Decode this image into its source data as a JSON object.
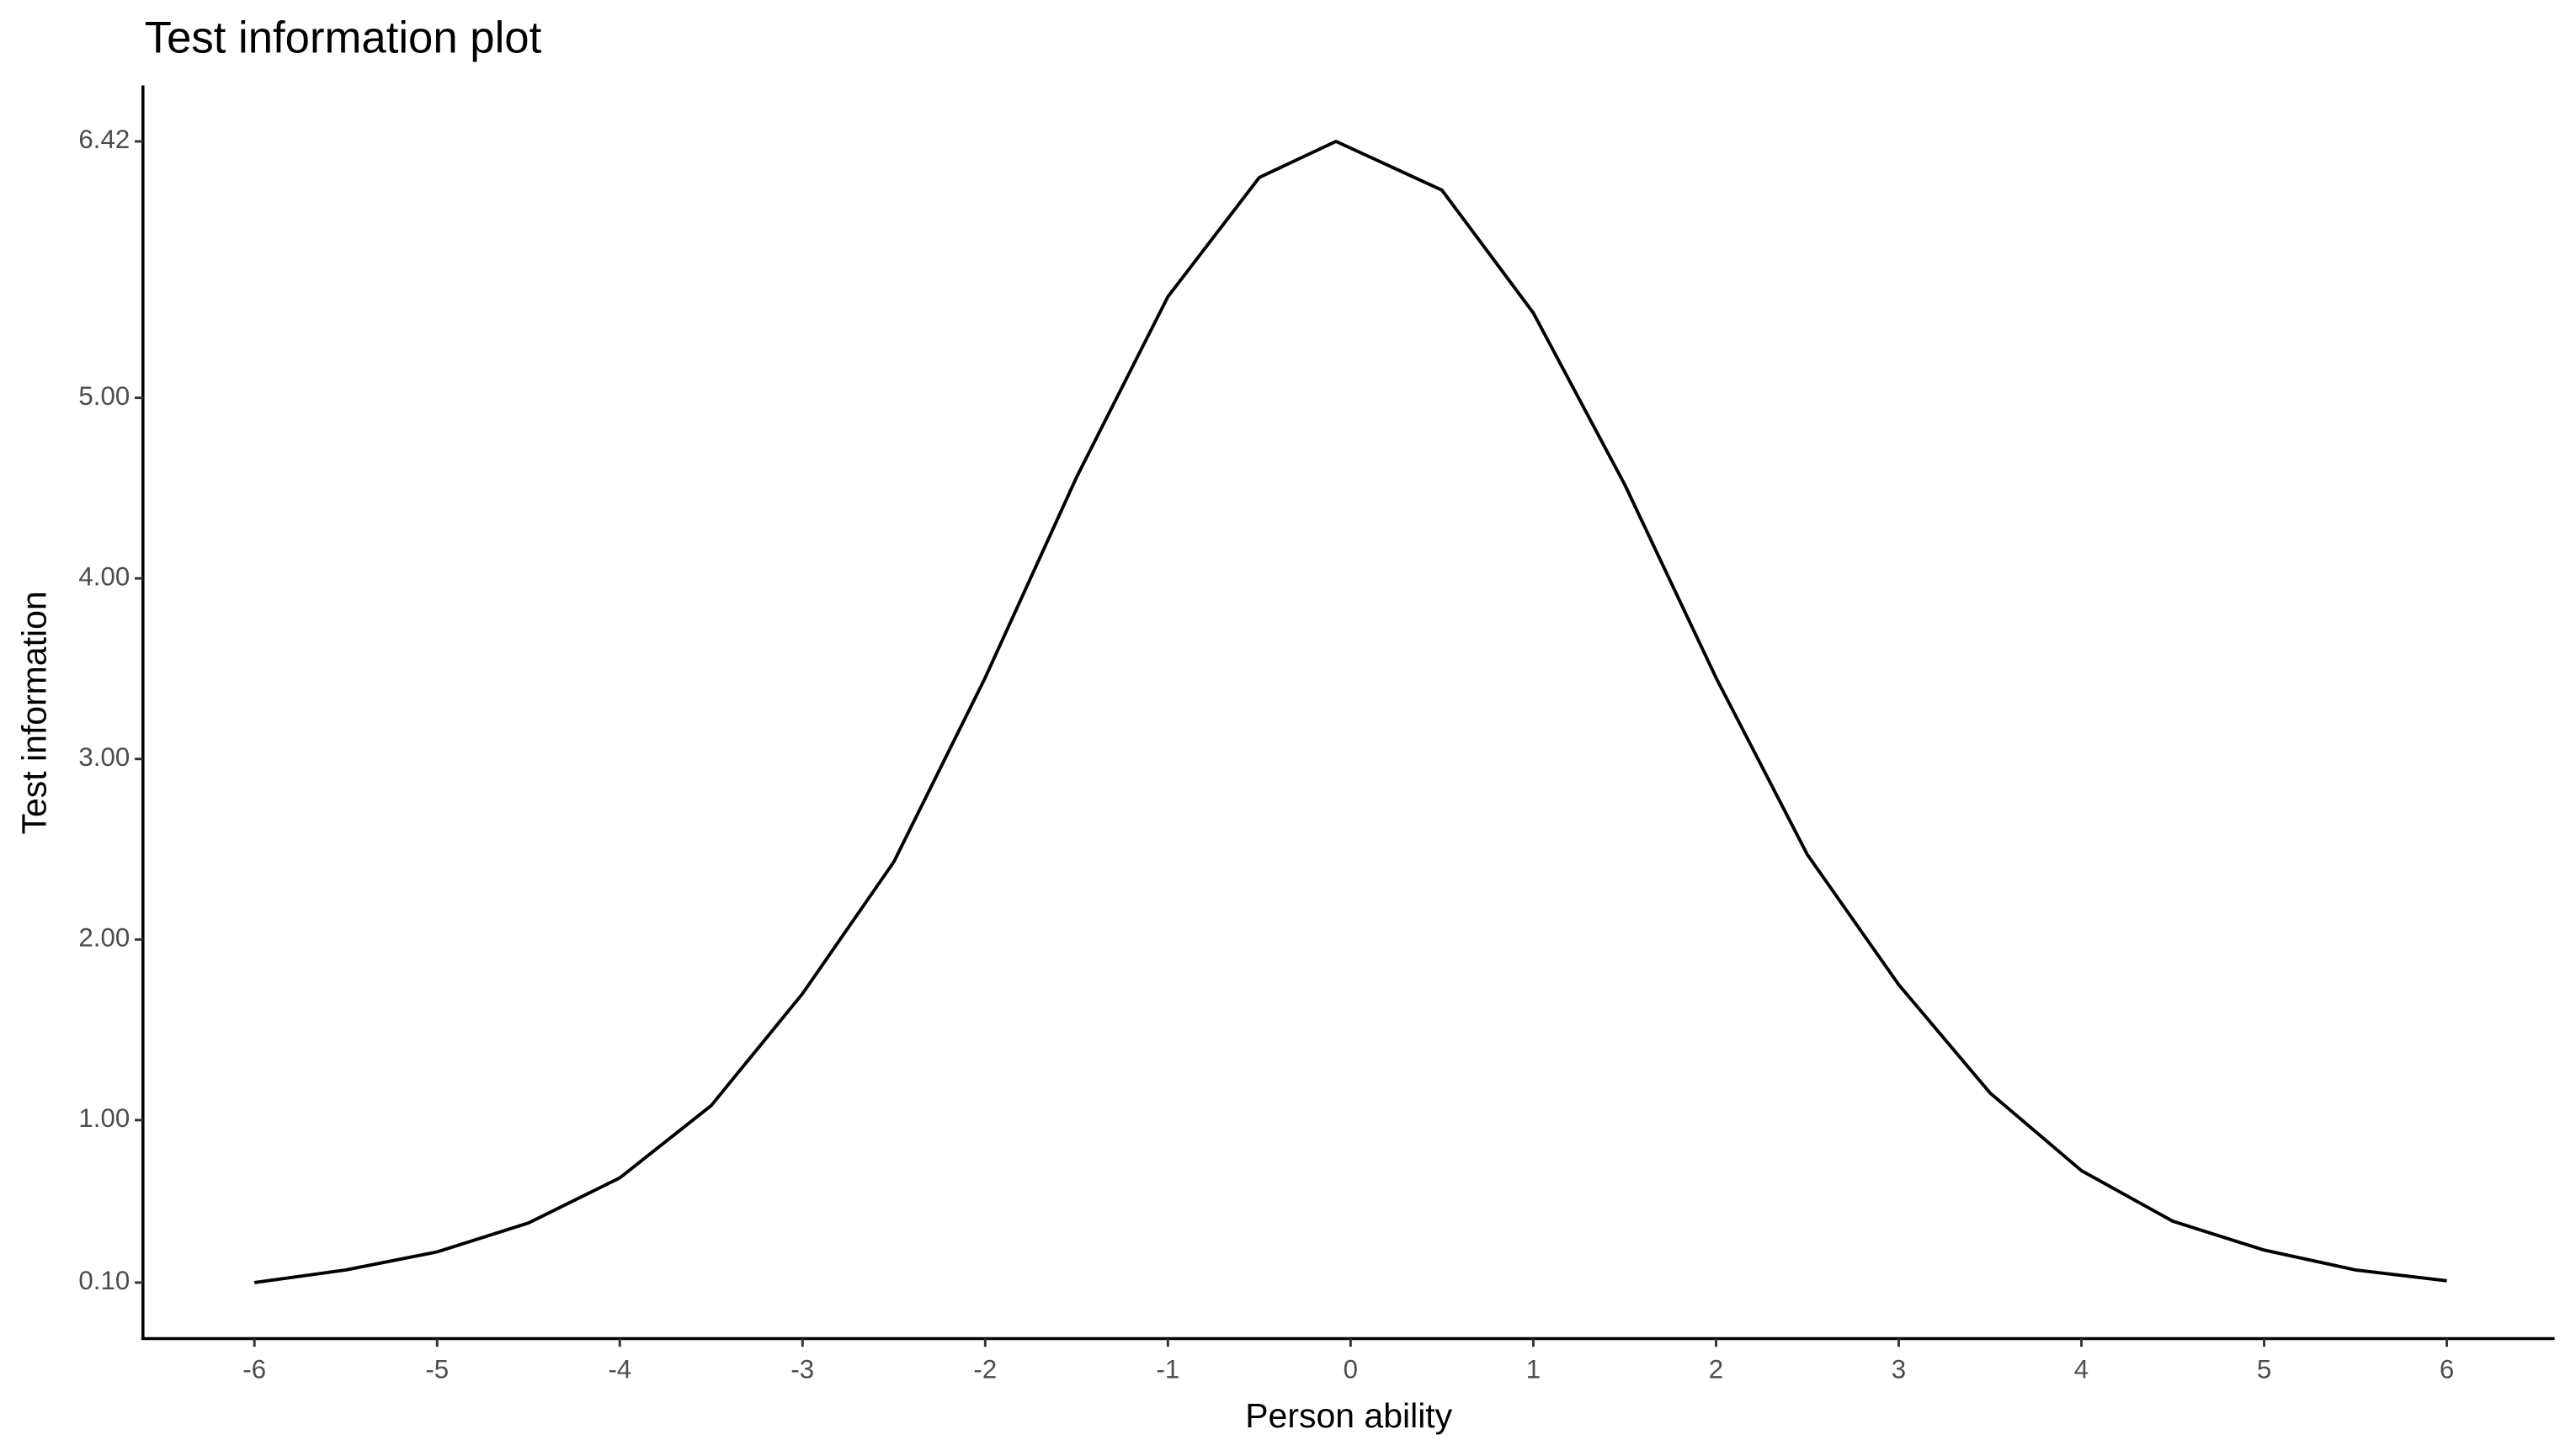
{
  "chart_data": {
    "type": "line",
    "title": "Test information plot",
    "x_label": "Person ability",
    "y_label": "Test information",
    "x": [
      -6,
      -5.5,
      -5,
      -4.5,
      -4,
      -3.5,
      -3,
      -2.5,
      -2,
      -1.5,
      -1,
      -0.5,
      -0.08,
      0.5,
      1,
      1.5,
      2,
      2.5,
      3,
      3.5,
      4,
      4.5,
      5,
      5.5,
      6
    ],
    "series": [
      {
        "color": "#000000",
        "values": [
          0.1,
          0.17,
          0.27,
          0.43,
          0.68,
          1.08,
          1.7,
          2.43,
          3.45,
          4.56,
          5.56,
          6.22,
          6.42,
          6.15,
          5.47,
          4.52,
          3.45,
          2.47,
          1.75,
          1.15,
          0.72,
          0.44,
          0.28,
          0.17,
          0.11
        ]
      }
    ],
    "xlim": [
      -6.61,
      6.59
    ],
    "ylim": [
      -0.21,
      6.73
    ],
    "xticks": [
      -6,
      -5,
      -4,
      -3,
      -2,
      -1,
      0,
      1,
      2,
      3,
      4,
      5,
      6
    ],
    "yticks": [
      {
        "value": 0.1,
        "label": "0.10"
      },
      {
        "value": 1,
        "label": "1.00"
      },
      {
        "value": 2,
        "label": "2.00"
      },
      {
        "value": 3,
        "label": "3.00"
      },
      {
        "value": 4,
        "label": "4.00"
      },
      {
        "value": 5,
        "label": "5.00"
      },
      6.42
    ],
    "grid": false
  }
}
